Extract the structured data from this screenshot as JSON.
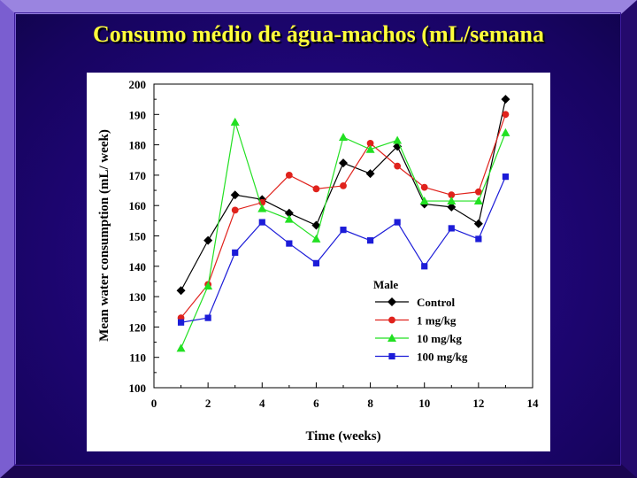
{
  "slide": {
    "title": "Consumo médio de água-machos (mL/semana"
  },
  "chart_data": {
    "type": "line",
    "xlabel": "Time (weeks)",
    "ylabel": "Mean water consumption (mL/ week)",
    "xlim": [
      0,
      14
    ],
    "ylim": [
      100,
      200
    ],
    "xticks": [
      0,
      2,
      4,
      6,
      8,
      10,
      12,
      14
    ],
    "yticks": [
      100,
      110,
      120,
      130,
      140,
      150,
      160,
      170,
      180,
      190,
      200
    ],
    "grid": false,
    "legend_title": "Male",
    "legend_position": "lower-right",
    "x": [
      1,
      2,
      3,
      4,
      5,
      6,
      7,
      8,
      9,
      10,
      11,
      12,
      13
    ],
    "series": [
      {
        "name": "Control",
        "color": "#000000",
        "marker": "diamond",
        "values": [
          132,
          148.5,
          163.5,
          162,
          157.5,
          153.5,
          174,
          170.5,
          179.5,
          160.5,
          159.5,
          154,
          195
        ]
      },
      {
        "name": "1 mg/kg",
        "color": "#e0221c",
        "marker": "circle",
        "values": [
          123,
          134,
          158.5,
          161,
          170,
          165.5,
          166.5,
          180.5,
          173,
          166,
          163.5,
          164.5,
          190
        ]
      },
      {
        "name": "10 mg/kg",
        "color": "#22e022",
        "marker": "triangle",
        "values": [
          113,
          133.5,
          187.5,
          159,
          155.5,
          149,
          182.5,
          178.5,
          181.5,
          161.5,
          161.5,
          161.5,
          184
        ]
      },
      {
        "name": "100 mg/kg",
        "color": "#1c1cd8",
        "marker": "square",
        "values": [
          121.5,
          123,
          144.5,
          154.5,
          147.5,
          141,
          152,
          148.5,
          154.5,
          140,
          152.5,
          149,
          169.5
        ]
      }
    ]
  }
}
